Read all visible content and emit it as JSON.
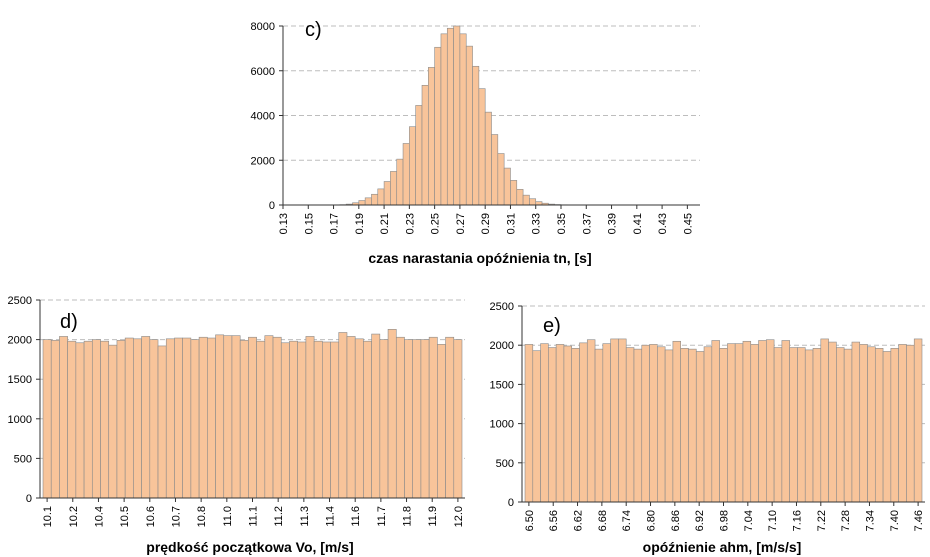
{
  "chart_data": [
    {
      "type": "bar",
      "panel_label": "c)",
      "xlabel": "czas narastania opóźnienia tn, [s]",
      "ylim": [
        0,
        8000
      ],
      "y_ticks": [
        "0",
        "2000",
        "4000",
        "6000",
        "8000"
      ],
      "x_ticks": [
        "0.13",
        "0.15",
        "0.17",
        "0.19",
        "0.21",
        "0.23",
        "0.25",
        "0.27",
        "0.29",
        "0.31",
        "0.33",
        "0.35",
        "0.37",
        "0.39",
        "0.41",
        "0.43",
        "0.45"
      ],
      "x_range": [
        0.13,
        0.46
      ],
      "bin_width": 0.005,
      "bin_start": 0.175,
      "values": [
        15,
        40,
        100,
        200,
        320,
        480,
        720,
        1050,
        1500,
        2050,
        2750,
        3500,
        4450,
        5350,
        6150,
        7050,
        7650,
        7900,
        8000,
        7650,
        7100,
        6200,
        5200,
        4150,
        3150,
        2300,
        1650,
        1100,
        700,
        440,
        280,
        150,
        80,
        40,
        20,
        10
      ],
      "grid": "dashed-horizontal",
      "color": "#f8c49a"
    },
    {
      "type": "bar",
      "panel_label": "d)",
      "xlabel": "prędkość początkowa Vo, [m/s]",
      "ylim": [
        0,
        2500
      ],
      "y_ticks": [
        "0",
        "500",
        "1000",
        "1500",
        "2000",
        "2500"
      ],
      "x_ticks": [
        "10.1",
        "10.2",
        "10.4",
        "10.5",
        "10.6",
        "10.7",
        "10.8",
        "11.0",
        "11.1",
        "11.2",
        "11.3",
        "11.4",
        "11.6",
        "11.7",
        "11.8",
        "11.9",
        "12.0"
      ],
      "values": [
        2000,
        1990,
        2040,
        1980,
        1960,
        1980,
        2000,
        1980,
        1930,
        1990,
        2020,
        2010,
        2040,
        2000,
        1920,
        2010,
        2020,
        2020,
        2000,
        2030,
        2020,
        2060,
        2050,
        2050,
        1990,
        2030,
        1980,
        2050,
        2030,
        1960,
        1980,
        1970,
        2040,
        1980,
        1970,
        1970,
        2090,
        2040,
        2010,
        1980,
        2070,
        2000,
        2130,
        2030,
        2000,
        2000,
        2000,
        2030,
        1940,
        2030,
        2000
      ],
      "grid": "dashed-horizontal",
      "color": "#f8c49a"
    },
    {
      "type": "bar",
      "panel_label": "e)",
      "xlabel": "opóźnienie ahm, [m/s/s]",
      "ylim": [
        0,
        2500
      ],
      "y_ticks": [
        "0",
        "500",
        "1000",
        "1500",
        "2000",
        "2500"
      ],
      "x_ticks": [
        "6.50",
        "6.56",
        "6.62",
        "6.68",
        "6.74",
        "6.80",
        "6.86",
        "6.92",
        "6.98",
        "7.04",
        "7.10",
        "7.16",
        "7.22",
        "7.28",
        "7.34",
        "7.40",
        "7.46"
      ],
      "values": [
        2010,
        1930,
        2020,
        1970,
        2010,
        1990,
        1960,
        2030,
        2070,
        1950,
        2020,
        2080,
        2080,
        1970,
        1950,
        2000,
        2010,
        1980,
        1940,
        2050,
        1960,
        1950,
        1920,
        1980,
        2060,
        1960,
        2020,
        2020,
        2050,
        2010,
        2060,
        2070,
        1970,
        2060,
        1970,
        1970,
        1940,
        1960,
        2080,
        2040,
        1970,
        1950,
        2040,
        2010,
        1980,
        1960,
        1920,
        1960,
        2010,
        2000,
        2080
      ],
      "grid": "dashed-horizontal",
      "color": "#f8c49a"
    }
  ]
}
